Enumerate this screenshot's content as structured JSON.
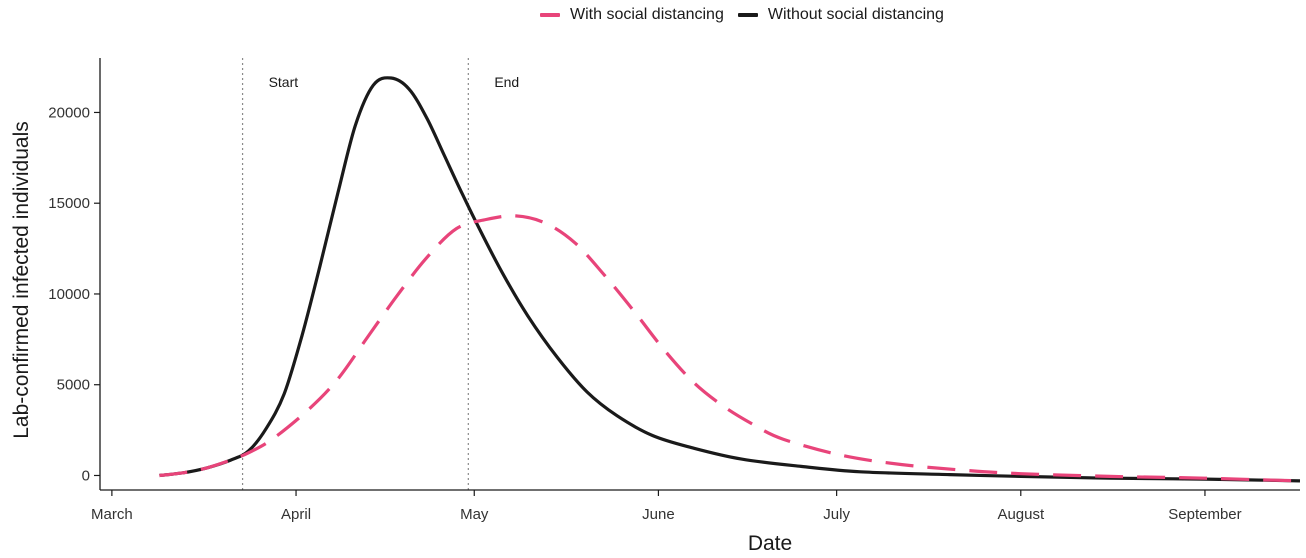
{
  "chart_data": {
    "type": "line",
    "xlabel": "Date",
    "ylabel": "Lab-confirmed infected individuals",
    "x_ticks": [
      {
        "label": "March",
        "date": "2020-03-01"
      },
      {
        "label": "April",
        "date": "2020-04-01"
      },
      {
        "label": "May",
        "date": "2020-05-01"
      },
      {
        "label": "June",
        "date": "2020-06-01"
      },
      {
        "label": "July",
        "date": "2020-07-01"
      },
      {
        "label": "August",
        "date": "2020-08-01"
      },
      {
        "label": "September",
        "date": "2020-09-01"
      }
    ],
    "y_ticks": [
      0,
      5000,
      10000,
      15000,
      20000
    ],
    "xlim": [
      "2020-02-28",
      "2020-09-17"
    ],
    "ylim": [
      -800,
      23000
    ],
    "vlines": [
      {
        "label": "Start",
        "date": "2020-03-23"
      },
      {
        "label": "End",
        "date": "2020-04-30"
      }
    ],
    "legend_position": "top",
    "grid": false,
    "series": [
      {
        "name": "With social distancing",
        "color": "#e8447a",
        "style": "dashed",
        "points": [
          [
            "2020-03-09",
            0
          ],
          [
            "2020-03-13",
            150
          ],
          [
            "2020-03-17",
            420
          ],
          [
            "2020-03-21",
            850
          ],
          [
            "2020-03-24",
            1250
          ],
          [
            "2020-03-28",
            2000
          ],
          [
            "2020-04-03",
            3600
          ],
          [
            "2020-04-08",
            5300
          ],
          [
            "2020-04-13",
            7600
          ],
          [
            "2020-04-18",
            9900
          ],
          [
            "2020-04-23",
            12000
          ],
          [
            "2020-04-28",
            13600
          ],
          [
            "2020-05-03",
            14100
          ],
          [
            "2020-05-08",
            14300
          ],
          [
            "2020-05-13",
            13900
          ],
          [
            "2020-05-18",
            12800
          ],
          [
            "2020-05-23",
            11000
          ],
          [
            "2020-05-28",
            9000
          ],
          [
            "2020-06-02",
            6900
          ],
          [
            "2020-06-07",
            5100
          ],
          [
            "2020-06-12",
            3800
          ],
          [
            "2020-06-17",
            2800
          ],
          [
            "2020-06-22",
            2000
          ],
          [
            "2020-07-02",
            1100
          ],
          [
            "2020-07-12",
            600
          ],
          [
            "2020-07-22",
            300
          ],
          [
            "2020-08-01",
            100
          ],
          [
            "2020-08-16",
            -50
          ],
          [
            "2020-09-01",
            -150
          ],
          [
            "2020-09-17",
            -300
          ]
        ]
      },
      {
        "name": "Without social distancing",
        "color": "#1a1a1a",
        "style": "solid",
        "points": [
          [
            "2020-03-09",
            0
          ],
          [
            "2020-03-13",
            150
          ],
          [
            "2020-03-17",
            420
          ],
          [
            "2020-03-21",
            850
          ],
          [
            "2020-03-24",
            1350
          ],
          [
            "2020-03-27",
            2600
          ],
          [
            "2020-03-30",
            4500
          ],
          [
            "2020-04-02",
            7700
          ],
          [
            "2020-04-05",
            11500
          ],
          [
            "2020-04-08",
            15500
          ],
          [
            "2020-04-11",
            19300
          ],
          [
            "2020-04-14",
            21500
          ],
          [
            "2020-04-17",
            21900
          ],
          [
            "2020-04-20",
            21300
          ],
          [
            "2020-04-23",
            19700
          ],
          [
            "2020-04-26",
            17600
          ],
          [
            "2020-04-29",
            15500
          ],
          [
            "2020-05-02",
            13500
          ],
          [
            "2020-05-06",
            11000
          ],
          [
            "2020-05-10",
            8800
          ],
          [
            "2020-05-15",
            6500
          ],
          [
            "2020-05-20",
            4600
          ],
          [
            "2020-05-25",
            3300
          ],
          [
            "2020-05-31",
            2200
          ],
          [
            "2020-06-07",
            1500
          ],
          [
            "2020-06-15",
            900
          ],
          [
            "2020-06-25",
            500
          ],
          [
            "2020-07-05",
            200
          ],
          [
            "2020-07-20",
            50
          ],
          [
            "2020-08-01",
            -50
          ],
          [
            "2020-08-16",
            -150
          ],
          [
            "2020-09-01",
            -200
          ],
          [
            "2020-09-17",
            -300
          ]
        ]
      }
    ]
  }
}
